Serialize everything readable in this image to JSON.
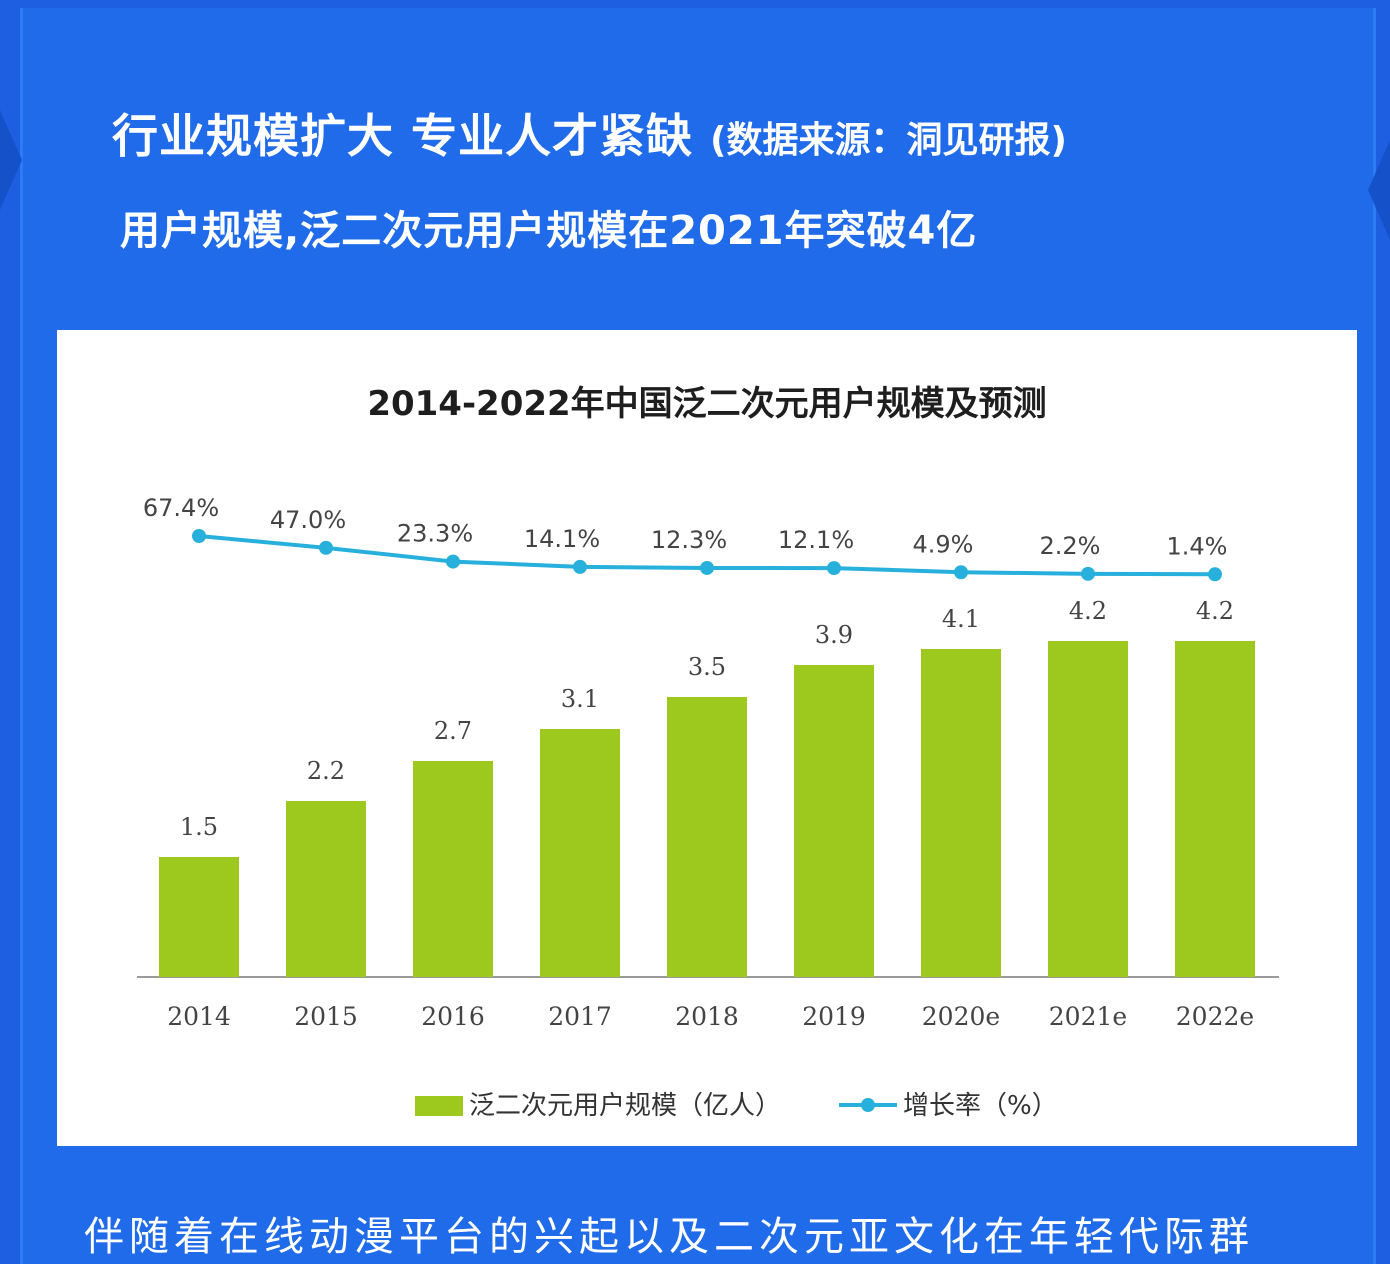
{
  "page": {
    "headline_main": "行业规模扩大 专业人才紧缺",
    "headline_source": "(数据来源：洞见研报)",
    "subhead": "用户规模,泛二次元用户规模在2021年突破4亿",
    "footer_text": "伴随着在线动漫平台的兴起以及二次元亚文化在年轻代际群"
  },
  "colors": {
    "background": "#1f6bea",
    "bar": "#9dc81e",
    "line": "#27b0dc",
    "text_dark": "#1e1e1e",
    "axis_text": "#444444"
  },
  "chart_data": {
    "type": "bar",
    "title": "2014-2022年中国泛二次元用户规模及预测",
    "categories": [
      "2014",
      "2015",
      "2016",
      "2017",
      "2018",
      "2019",
      "2020e",
      "2021e",
      "2022e"
    ],
    "series": [
      {
        "name": "泛二次元用户规模（亿人）",
        "type": "bar",
        "values": [
          1.5,
          2.2,
          2.7,
          3.1,
          3.5,
          3.9,
          4.1,
          4.2,
          4.2
        ],
        "labels": [
          "1.5",
          "2.2",
          "2.7",
          "3.1",
          "3.5",
          "3.9",
          "4.1",
          "4.2",
          "4.2"
        ]
      },
      {
        "name": "增长率（%）",
        "type": "line",
        "values": [
          67.4,
          47.0,
          23.3,
          14.1,
          12.3,
          12.1,
          4.9,
          2.2,
          1.4
        ],
        "labels": [
          "67.4%",
          "47.0%",
          "23.3%",
          "14.1%",
          "12.3%",
          "12.1%",
          "4.9%",
          "2.2%",
          "1.4%"
        ]
      }
    ],
    "legend_position": "bottom",
    "grid": false
  }
}
